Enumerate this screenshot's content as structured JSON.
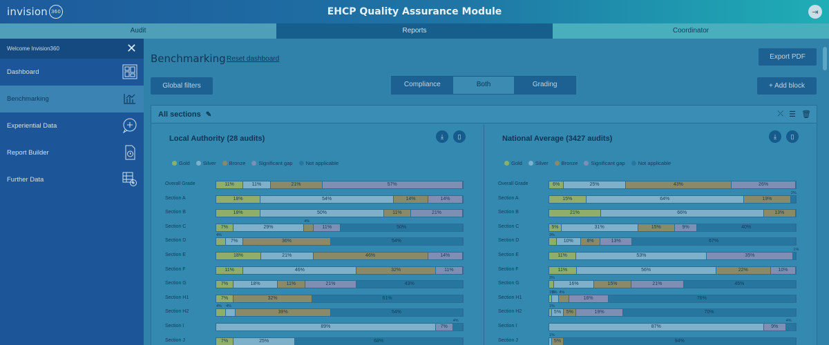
{
  "header": {
    "logo_text": "invision",
    "logo_badge": "360",
    "title": "EHCP Quality Assurance Module",
    "logout_icon": "logout-icon"
  },
  "tabs": [
    {
      "label": "Audit"
    },
    {
      "label": "Reports"
    },
    {
      "label": "Coordinator"
    }
  ],
  "sidebar": {
    "welcome": "Welcome Invision360",
    "items": [
      {
        "label": "Dashboard",
        "icon": "dashboard-icon"
      },
      {
        "label": "Benchmarking",
        "icon": "bar-chart-icon"
      },
      {
        "label": "Experiential Data",
        "icon": "chat-plus-icon"
      },
      {
        "label": "Report Builder",
        "icon": "report-clock-icon"
      },
      {
        "label": "Further Data",
        "icon": "data-grid-icon"
      }
    ]
  },
  "main": {
    "title": "Benchmarking",
    "reset": "Reset dashboard",
    "export": "Export PDF",
    "filters": "Global filters",
    "add_block": "+ Add block",
    "toggle": [
      "Compliance",
      "Both",
      "Grading"
    ],
    "toggle_selected": "Both"
  },
  "panel": {
    "title": "All sections",
    "legend": [
      {
        "label": "Gold",
        "color": "#8fae6a"
      },
      {
        "label": "Silver",
        "color": "#7fb0c9"
      },
      {
        "label": "Bronze",
        "color": "#8b8a68"
      },
      {
        "label": "Significant gap",
        "color": "#7f8fb4"
      },
      {
        "label": "Not applicable",
        "color": "#27769f"
      }
    ],
    "local": {
      "title": "Local Authority (28 audits)",
      "rows": [
        {
          "label": "Overall Grade",
          "values": [
            11,
            11,
            21,
            57,
            0
          ]
        },
        {
          "label": "Section A",
          "values": [
            18,
            54,
            14,
            14,
            0
          ]
        },
        {
          "label": "Section B",
          "values": [
            18,
            50,
            11,
            21,
            0
          ]
        },
        {
          "label": "Section C",
          "values": [
            7,
            29,
            4,
            11,
            50
          ]
        },
        {
          "label": "Section D",
          "values": [
            4,
            7,
            36,
            0,
            54
          ]
        },
        {
          "label": "Section E",
          "values": [
            18,
            21,
            46,
            14,
            0
          ]
        },
        {
          "label": "Section F",
          "values": [
            11,
            46,
            32,
            11,
            0
          ]
        },
        {
          "label": "Section G",
          "values": [
            7,
            18,
            11,
            21,
            43
          ]
        },
        {
          "label": "Section H1",
          "values": [
            7,
            0,
            32,
            0,
            61
          ]
        },
        {
          "label": "Section H2",
          "values": [
            4,
            4,
            39,
            0,
            54
          ]
        },
        {
          "label": "Section I",
          "values": [
            0,
            89,
            0,
            7,
            4
          ]
        },
        {
          "label": "Section J",
          "values": [
            7,
            25,
            0,
            0,
            68
          ]
        }
      ]
    },
    "national": {
      "title": "National Average (3427 audits)",
      "rows": [
        {
          "label": "Overall Grade",
          "values": [
            6,
            25,
            43,
            26,
            0
          ]
        },
        {
          "label": "Section A",
          "values": [
            15,
            64,
            19,
            0,
            2
          ]
        },
        {
          "label": "Section B",
          "values": [
            21,
            66,
            13,
            0,
            0
          ]
        },
        {
          "label": "Section C",
          "values": [
            5,
            31,
            15,
            9,
            40
          ]
        },
        {
          "label": "Section D",
          "values": [
            3,
            10,
            8,
            13,
            67
          ]
        },
        {
          "label": "Section E",
          "values": [
            11,
            53,
            0,
            35,
            1
          ]
        },
        {
          "label": "Section F",
          "values": [
            11,
            56,
            22,
            10,
            0
          ]
        },
        {
          "label": "Section G",
          "values": [
            2,
            16,
            15,
            21,
            45
          ]
        },
        {
          "label": "Section H1",
          "values": [
            1,
            3,
            4,
            16,
            76
          ]
        },
        {
          "label": "Section H2",
          "values": [
            1,
            5,
            5,
            19,
            70
          ]
        },
        {
          "label": "Section I",
          "values": [
            0,
            87,
            0,
            9,
            4
          ]
        },
        {
          "label": "Section J",
          "values": [
            0,
            1,
            5,
            0,
            94
          ]
        }
      ]
    }
  }
}
